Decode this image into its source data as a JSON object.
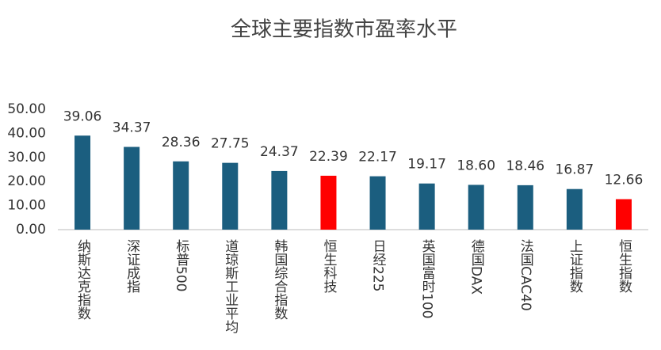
{
  "chart_data": {
    "type": "bar",
    "title": "全球主要指数市盈率水平",
    "categories": [
      "纳斯达克指数",
      "深证成指",
      "标普500",
      "道琼斯工业平均",
      "韩国综合指数",
      "恒生科技",
      "日经225",
      "英国富时100",
      "德国DAX",
      "法国CAC40",
      "上证指数",
      "恒生指数"
    ],
    "values": [
      39.06,
      34.37,
      28.36,
      27.75,
      24.37,
      22.39,
      22.17,
      19.17,
      18.6,
      18.46,
      16.87,
      12.66
    ],
    "value_labels": [
      "39.06",
      "34.37",
      "28.36",
      "27.75",
      "24.37",
      "22.39",
      "22.17",
      "19.17",
      "18.60",
      "18.46",
      "16.87",
      "12.66"
    ],
    "colors": [
      "#1b5e7f",
      "#1b5e7f",
      "#1b5e7f",
      "#1b5e7f",
      "#1b5e7f",
      "#ff0000",
      "#1b5e7f",
      "#1b5e7f",
      "#1b5e7f",
      "#1b5e7f",
      "#1b5e7f",
      "#ff0000"
    ],
    "ylim": [
      0,
      50
    ],
    "yticks": [
      {
        "value": 0,
        "label": "0.00"
      },
      {
        "value": 10,
        "label": "10.00"
      },
      {
        "value": 20,
        "label": "20.00"
      },
      {
        "value": 30,
        "label": "30.00"
      },
      {
        "value": 40,
        "label": "40.00"
      },
      {
        "value": 50,
        "label": "50.00"
      }
    ],
    "grid": false
  }
}
